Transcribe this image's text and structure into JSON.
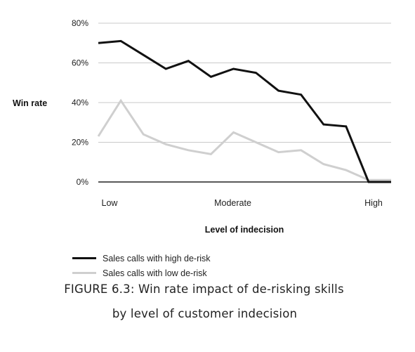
{
  "chart_data": {
    "type": "line",
    "ylabel": "Win rate",
    "xlabel": "Level of indecision",
    "x_tick_labels": [
      "Low",
      "Moderate",
      "High"
    ],
    "y_ticks": [
      "0%",
      "20%",
      "40%",
      "60%",
      "80%"
    ],
    "ylim": [
      0,
      80
    ],
    "grid": true,
    "legend_position": "bottom-left",
    "series": [
      {
        "name": "Sales calls with high de-risk",
        "color": "#111111",
        "values": [
          70,
          71,
          64,
          57,
          61,
          53,
          57,
          55,
          46,
          44,
          29,
          28,
          0,
          0
        ]
      },
      {
        "name": "Sales calls with low de-risk",
        "color": "#cfcfcf",
        "values": [
          23,
          41,
          24,
          19,
          16,
          14,
          25,
          20,
          15,
          16,
          9,
          6,
          1,
          1
        ]
      }
    ]
  },
  "caption": {
    "line1": "FIGURE 6.3: Win rate impact of de-risking skills",
    "line2": "by level of customer indecision"
  }
}
